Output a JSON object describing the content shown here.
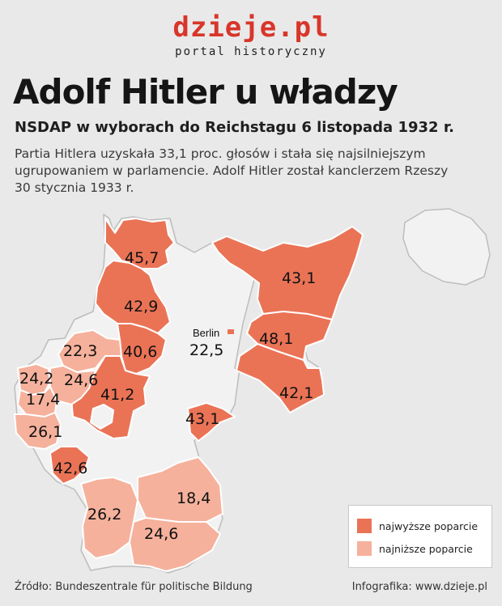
{
  "header": {
    "logo": "dzieje.pl",
    "logo_tagline": "portal historyczny",
    "title": "Adolf Hitler u władzy",
    "subtitle": "NSDAP w wyborach do Reichstagu 6 listopada 1932 r.",
    "description_lines": [
      "Partia Hitlera uzyskała 33,1 proc. głosów i stała się najsilniejszym",
      "ugrupowaniem w parlamencie. Adolf Hitler został kanclerzem Rzeszy",
      "30 stycznia 1933 r."
    ]
  },
  "map": {
    "city_label": "Berlin",
    "values": {
      "schleswig": "45,7",
      "east_prussia": "43,1",
      "hanover": "42,9",
      "frankfurt_oder": "48,1",
      "berlin": "22,5",
      "westphalia_north": "22,3",
      "hesse_north": "40,6",
      "dusseldorf": "24,2",
      "cologne": "24,6",
      "koblenz": "17,4",
      "hesse_nassau": "41,2",
      "trier": "26,1",
      "chemnitz": "43,1",
      "liegnitz": "42,1",
      "palatinate": "42,6",
      "wurttemberg": "26,2",
      "lower_bavaria": "18,4",
      "upper_bavaria": "24,6"
    }
  },
  "legend": {
    "items": [
      {
        "label": "najwyższe poparcie",
        "color": "#ea7356"
      },
      {
        "label": "najniższe poparcie",
        "color": "#f5b19c"
      }
    ]
  },
  "colors": {
    "high": "#ea7356",
    "low": "#f5b19c",
    "base": "#f2f2f2",
    "border": "#ffffff",
    "outline": "#bdbdbd"
  },
  "footer": {
    "source": "Źródło: Bundeszentrale für politische Bildung",
    "credit": "Infografika: www.dzieje.pl"
  }
}
